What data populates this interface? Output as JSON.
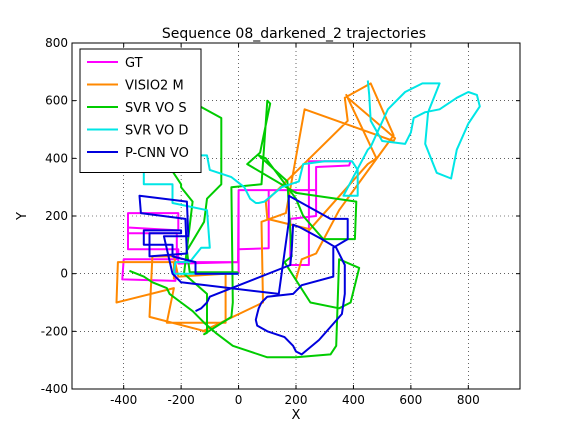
{
  "chart_data": {
    "type": "line",
    "title": "Sequence 08_darkened_2 trajectories",
    "xlabel": "X",
    "ylabel": "Y",
    "xlim": [
      -580,
      980
    ],
    "ylim": [
      -400,
      800
    ],
    "xticks": [
      -400,
      -200,
      0,
      200,
      400,
      600,
      800
    ],
    "yticks": [
      -400,
      -200,
      0,
      200,
      400,
      600,
      800
    ],
    "grid": true,
    "legend_position": "top-left",
    "series": [
      {
        "name": "GT",
        "color": "#ff00ff",
        "x": [
          0,
          0,
          105,
          105,
          0,
          -2,
          -210,
          -210,
          -385,
          -385,
          -210,
          -210,
          -385,
          -385,
          -215,
          -215,
          -400,
          -405,
          -220,
          -220,
          0,
          0,
          105,
          110,
          270,
          270,
          385,
          390,
          245,
          245,
          180,
          180,
          270,
          270,
          105,
          110
        ],
        "y": [
          0,
          85,
          88,
          290,
          290,
          40,
          35,
          85,
          85,
          160,
          150,
          210,
          210,
          140,
          140,
          50,
          50,
          -20,
          -25,
          40,
          40,
          290,
          290,
          290,
          290,
          370,
          375,
          390,
          390,
          30,
          30,
          190,
          200,
          290,
          290,
          290
        ]
      },
      {
        "name": "VISIO2 M",
        "color": "#ff8800",
        "x": [
          -225,
          -225,
          -420,
          -425,
          -225,
          -250,
          -45,
          -45,
          -210,
          -225,
          -300,
          -310,
          -115,
          -125,
          85,
          80,
          165,
          230,
          540,
          545,
          380,
          375,
          480,
          450,
          245,
          245,
          100,
          95,
          380,
          370,
          460,
          540,
          350,
          270,
          220,
          200
        ],
        "y": [
          -20,
          40,
          40,
          -100,
          -50,
          -170,
          -170,
          0,
          -10,
          60,
          60,
          -150,
          -200,
          -200,
          -100,
          180,
          210,
          570,
          460,
          470,
          610,
          620,
          400,
          380,
          150,
          155,
          190,
          250,
          530,
          610,
          660,
          480,
          220,
          70,
          50,
          -20
        ]
      },
      {
        "name": "SVR VO S",
        "color": "#00cc00",
        "x": [
          0,
          -5,
          -170,
          -180,
          -120,
          -110,
          -60,
          -60,
          -170,
          -175,
          -320,
          -300,
          -190,
          -260,
          -200,
          -200,
          -160,
          -190,
          -110,
          -110,
          -120,
          -25,
          -20,
          -25,
          80,
          100,
          110,
          75,
          30,
          200,
          410,
          405,
          295,
          225,
          200,
          95,
          70,
          170,
          185,
          160,
          250,
          350,
          390,
          420,
          350,
          340,
          320,
          200,
          100,
          -20,
          -80,
          -120,
          -160,
          -200,
          -240,
          -250,
          -300,
          -330,
          -380
        ],
        "y": [
          0,
          5,
          5,
          80,
          180,
          260,
          310,
          540,
          600,
          605,
          600,
          450,
          450,
          400,
          310,
          300,
          250,
          0,
          -70,
          -205,
          -210,
          -150,
          -100,
          300,
          310,
          600,
          590,
          420,
          380,
          280,
          250,
          120,
          120,
          200,
          260,
          400,
          410,
          320,
          60,
          40,
          -100,
          -120,
          -100,
          20,
          50,
          -250,
          -280,
          -290,
          -290,
          -250,
          -205,
          -170,
          -130,
          -100,
          -70,
          -50,
          -30,
          -10,
          10
        ]
      },
      {
        "name": "SVR VO D",
        "color": "#00e6e6",
        "x": [
          0,
          -225,
          -220,
          -170,
          -130,
          -100,
          -110,
          -230,
          -230,
          -330,
          -330,
          -210,
          -215,
          -110,
          -100,
          -25,
          20,
          40,
          60,
          70,
          90,
          150,
          210,
          225,
          225,
          300,
          395,
          415,
          415,
          365,
          450,
          460,
          520,
          580,
          640,
          700,
          660,
          650,
          690,
          740,
          760,
          800,
          840,
          830,
          800,
          760,
          700,
          650,
          610,
          600,
          580,
          500,
          460,
          455,
          450
        ],
        "y": [
          0,
          0,
          40,
          40,
          90,
          90,
          220,
          245,
          310,
          310,
          360,
          360,
          410,
          410,
          360,
          335,
          300,
          260,
          245,
          245,
          250,
          300,
          320,
          380,
          380,
          390,
          390,
          360,
          270,
          270,
          430,
          440,
          570,
          630,
          660,
          660,
          560,
          450,
          350,
          330,
          430,
          520,
          580,
          620,
          630,
          610,
          570,
          560,
          540,
          490,
          450,
          460,
          530,
          620,
          670
        ]
      },
      {
        "name": "P-CNN VO",
        "color": "#0000dd",
        "x": [
          0,
          -150,
          -150,
          -230,
          -230,
          -330,
          -330,
          -200,
          -200,
          -310,
          -310,
          -180,
          -185,
          -340,
          -345,
          -180,
          -175,
          -260,
          -230,
          -200,
          140,
          175,
          175,
          320,
          380,
          380,
          330,
          330,
          220,
          190,
          100,
          80,
          70,
          65,
          60,
          65,
          100,
          160,
          190,
          200,
          220,
          280,
          360,
          370,
          370,
          340,
          290,
          215,
          190,
          185,
          180,
          -100,
          -110,
          -130,
          -150
        ],
        "y": [
          0,
          0,
          40,
          60,
          100,
          100,
          150,
          150,
          140,
          140,
          60,
          70,
          190,
          210,
          270,
          250,
          130,
          130,
          0,
          -30,
          -70,
          180,
          270,
          190,
          190,
          120,
          90,
          -10,
          -40,
          -70,
          -80,
          -100,
          -120,
          -140,
          -160,
          -180,
          -200,
          -220,
          -250,
          -270,
          -280,
          -230,
          -140,
          -70,
          30,
          90,
          120,
          160,
          170,
          80,
          30,
          -80,
          -100,
          -120,
          -130
        ]
      }
    ]
  }
}
